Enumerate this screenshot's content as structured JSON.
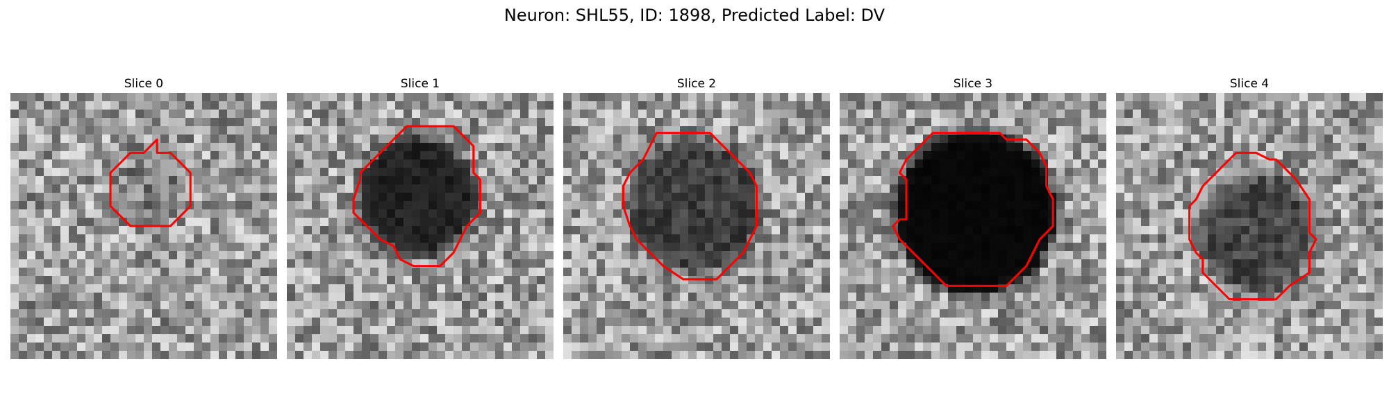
{
  "figure": {
    "title": "Neuron: SHL55, ID: 1898, Predicted Label: DV"
  },
  "slices": [
    {
      "label": "Slice 0",
      "contour": [
        [
          11,
          4.5
        ],
        [
          12,
          4.5
        ],
        [
          13.5,
          6
        ],
        [
          13.5,
          8.5
        ],
        [
          12,
          10
        ],
        [
          9,
          10
        ],
        [
          7.5,
          8.5
        ],
        [
          7.5,
          6
        ],
        [
          9,
          4.5
        ],
        [
          10,
          4.5
        ],
        [
          11,
          3.5
        ]
      ],
      "blob": {
        "cx": 10.5,
        "cy": 7.2,
        "r": 3.0,
        "darkness": 0.18
      },
      "seed": 11
    },
    {
      "label": "Slice 1",
      "contour": [
        [
          11,
          2.5
        ],
        [
          12.5,
          2.5
        ],
        [
          14,
          4
        ],
        [
          14,
          6
        ],
        [
          14.5,
          6.5
        ],
        [
          14.5,
          9
        ],
        [
          14,
          9.5
        ],
        [
          13.5,
          10
        ],
        [
          13,
          11
        ],
        [
          12.5,
          12
        ],
        [
          11.5,
          13
        ],
        [
          9.5,
          13
        ],
        [
          8.5,
          12.5
        ],
        [
          8,
          11.5
        ],
        [
          7,
          11
        ],
        [
          6,
          10
        ],
        [
          5,
          9
        ],
        [
          5,
          8
        ],
        [
          5.5,
          6.5
        ],
        [
          5.5,
          6
        ],
        [
          7,
          4.5
        ],
        [
          8,
          3.5
        ],
        [
          9,
          2.5
        ]
      ],
      "blob": {
        "cx": 9.8,
        "cy": 7.8,
        "r": 4.6,
        "darkness": 0.78
      },
      "seed": 23
    },
    {
      "label": "Slice 2",
      "contour": [
        [
          11,
          3
        ],
        [
          12.5,
          4.5
        ],
        [
          14,
          6
        ],
        [
          14.5,
          7
        ],
        [
          14.5,
          10
        ],
        [
          14,
          11
        ],
        [
          13.5,
          12
        ],
        [
          12.5,
          13
        ],
        [
          11.5,
          14
        ],
        [
          9,
          14
        ],
        [
          7.5,
          13
        ],
        [
          6.5,
          12
        ],
        [
          5.5,
          11
        ],
        [
          5,
          10
        ],
        [
          4.5,
          8.5
        ],
        [
          4.5,
          7
        ],
        [
          5,
          6
        ],
        [
          6,
          5
        ],
        [
          6.5,
          4
        ],
        [
          7,
          3
        ]
      ],
      "blob": {
        "cx": 9.9,
        "cy": 8.5,
        "r": 5.2,
        "darkness": 0.6
      },
      "seed": 37
    },
    {
      "label": "Slice 3",
      "contour": [
        [
          12,
          3
        ],
        [
          12.5,
          3.5
        ],
        [
          14,
          3.5
        ],
        [
          15,
          4.5
        ],
        [
          15.5,
          5.5
        ],
        [
          15.5,
          7
        ],
        [
          16,
          8
        ],
        [
          16,
          10
        ],
        [
          15,
          11
        ],
        [
          14.5,
          12
        ],
        [
          14,
          13
        ],
        [
          12.5,
          14.5
        ],
        [
          8,
          14.5
        ],
        [
          7,
          13.5
        ],
        [
          6,
          12.5
        ],
        [
          4.5,
          11
        ],
        [
          4,
          10
        ],
        [
          4.5,
          9.5
        ],
        [
          5,
          9.5
        ],
        [
          5,
          6.5
        ],
        [
          4.5,
          6
        ],
        [
          5,
          5
        ],
        [
          6,
          4
        ],
        [
          7,
          3
        ]
      ],
      "blob": {
        "cx": 10.2,
        "cy": 9.0,
        "r": 6.2,
        "darkness": 0.95
      },
      "seed": 53
    },
    {
      "label": "Slice 4",
      "contour": [
        [
          11.5,
          5
        ],
        [
          12,
          5
        ],
        [
          13.5,
          6.5
        ],
        [
          14.5,
          8
        ],
        [
          14.5,
          10.5
        ],
        [
          15,
          11
        ],
        [
          14.5,
          12
        ],
        [
          14.5,
          13.5
        ],
        [
          13,
          14.5
        ],
        [
          12,
          15.5
        ],
        [
          8.5,
          15.5
        ],
        [
          7,
          14
        ],
        [
          6.5,
          13.5
        ],
        [
          6.5,
          12.5
        ],
        [
          6,
          12
        ],
        [
          5.5,
          11
        ],
        [
          5.5,
          8.5
        ],
        [
          6,
          8
        ],
        [
          6.5,
          7
        ],
        [
          7.5,
          6
        ],
        [
          8,
          5.5
        ],
        [
          8.5,
          5
        ],
        [
          9,
          4.5
        ],
        [
          10.5,
          4.5
        ]
      ],
      "blob": {
        "cx": 10.6,
        "cy": 10.5,
        "r": 4.6,
        "darkness": 0.55
      },
      "seed": 71
    }
  ],
  "colors": {
    "contour": "#ff0000"
  }
}
